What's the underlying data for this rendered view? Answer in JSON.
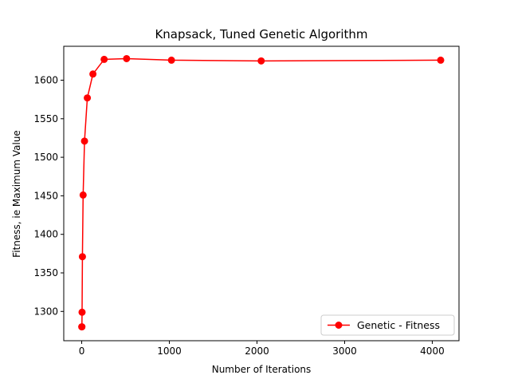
{
  "chart_data": {
    "type": "line",
    "title": "Knapsack, Tuned Genetic Algorithm",
    "xlabel": "Number of Iterations",
    "ylabel": "Fitness, ie Maximum Value",
    "xlim": [
      -205,
      4305
    ],
    "ylim": [
      1262,
      1644
    ],
    "xticks": [
      0,
      1000,
      2000,
      3000,
      4000
    ],
    "yticks": [
      1300,
      1350,
      1400,
      1450,
      1500,
      1550,
      1600
    ],
    "grid": false,
    "legend_position": "lower right",
    "series": [
      {
        "name": "Genetic - Fitness",
        "color": "#ff0000",
        "marker": "circle",
        "x": [
          1,
          2,
          4,
          8,
          16,
          32,
          64,
          128,
          256,
          512,
          1024,
          2048,
          4096
        ],
        "y": [
          1280,
          1280,
          1299,
          1371,
          1451,
          1521,
          1577,
          1608,
          1627,
          1628,
          1626,
          1625,
          1626
        ]
      }
    ]
  }
}
